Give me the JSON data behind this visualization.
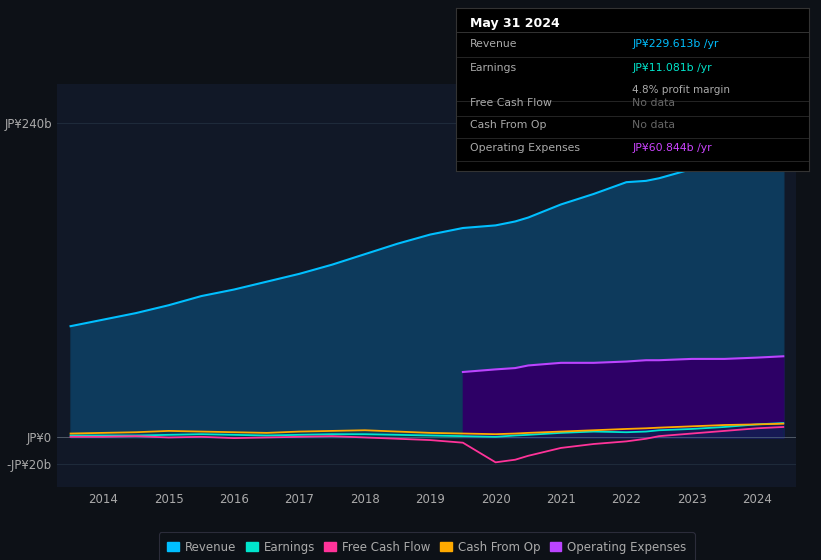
{
  "background_color": "#0d1117",
  "plot_bg_color": "#111827",
  "title": "May 31 2024",
  "info_box": {
    "rows": [
      {
        "label": "Revenue",
        "value": "JP¥229.613b /yr",
        "value_color": "#00bfff",
        "sub": null
      },
      {
        "label": "Earnings",
        "value": "JP¥11.081b /yr",
        "value_color": "#00e5cc",
        "sub": "4.8% profit margin"
      },
      {
        "label": "Free Cash Flow",
        "value": "No data",
        "value_color": "#666666",
        "sub": null
      },
      {
        "label": "Cash From Op",
        "value": "No data",
        "value_color": "#666666",
        "sub": null
      },
      {
        "label": "Operating Expenses",
        "value": "JP¥60.844b /yr",
        "value_color": "#cc44ff",
        "sub": null
      }
    ]
  },
  "yticks": [
    -20,
    0,
    240
  ],
  "ylabels": [
    "-JP¥20b",
    "JP¥0",
    "JP¥240b"
  ],
  "ylim": [
    -38,
    270
  ],
  "xlim": [
    2013.3,
    2024.6
  ],
  "xticks": [
    2014,
    2015,
    2016,
    2017,
    2018,
    2019,
    2020,
    2021,
    2022,
    2023,
    2024
  ],
  "years": [
    2013.5,
    2014.0,
    2014.5,
    2015.0,
    2015.5,
    2016.0,
    2016.5,
    2017.0,
    2017.5,
    2018.0,
    2018.5,
    2019.0,
    2019.5,
    2020.0,
    2020.3,
    2020.5,
    2021.0,
    2021.5,
    2022.0,
    2022.3,
    2022.5,
    2023.0,
    2023.5,
    2024.0,
    2024.4
  ],
  "revenue": [
    85,
    90,
    95,
    101,
    108,
    113,
    119,
    125,
    132,
    140,
    148,
    155,
    160,
    162,
    165,
    168,
    178,
    186,
    195,
    196,
    198,
    205,
    215,
    228,
    232
  ],
  "earnings": [
    1.5,
    1.5,
    1.5,
    2.0,
    2.5,
    2.0,
    1.5,
    2.0,
    2.5,
    2.5,
    2.0,
    1.5,
    1.0,
    0.5,
    1.5,
    2.0,
    3.5,
    4.5,
    4.0,
    4.5,
    5.5,
    6.5,
    8.0,
    10.0,
    11.0
  ],
  "free_cash_flow": [
    0.5,
    0.5,
    1.0,
    0.0,
    0.5,
    -0.5,
    0.0,
    0.5,
    1.0,
    0.0,
    -1.0,
    -2.0,
    -4.0,
    -19.0,
    -17.0,
    -14.0,
    -8.0,
    -5.0,
    -3.0,
    -1.0,
    1.0,
    3.0,
    5.0,
    7.0,
    8.0
  ],
  "cash_from_op": [
    3.0,
    3.5,
    4.0,
    5.0,
    4.5,
    4.0,
    3.5,
    4.5,
    5.0,
    5.5,
    4.5,
    3.5,
    3.0,
    2.5,
    3.0,
    3.5,
    4.5,
    5.5,
    6.5,
    7.0,
    7.5,
    8.5,
    9.5,
    10.0,
    10.5
  ],
  "op_expenses_x": [
    2019.5,
    2020.0,
    2020.3,
    2020.5,
    2021.0,
    2021.5,
    2022.0,
    2022.3,
    2022.5,
    2023.0,
    2023.5,
    2024.0,
    2024.4
  ],
  "op_expenses": [
    50,
    52,
    53,
    55,
    57,
    57,
    58,
    59,
    59,
    60,
    60,
    61,
    62
  ],
  "revenue_color": "#00bfff",
  "revenue_fill": "#0d3a5c",
  "earnings_color": "#00e5cc",
  "free_cash_flow_color": "#ff3399",
  "cash_from_op_color": "#ffaa00",
  "op_expenses_color": "#bb44ff",
  "op_expenses_fill": "#2d0066",
  "grid_color": "#1e2a3a",
  "text_color": "#aaaaaa",
  "legend_items": [
    {
      "label": "Revenue",
      "color": "#00bfff"
    },
    {
      "label": "Earnings",
      "color": "#00e5cc"
    },
    {
      "label": "Free Cash Flow",
      "color": "#ff3399"
    },
    {
      "label": "Cash From Op",
      "color": "#ffaa00"
    },
    {
      "label": "Operating Expenses",
      "color": "#bb44ff"
    }
  ]
}
